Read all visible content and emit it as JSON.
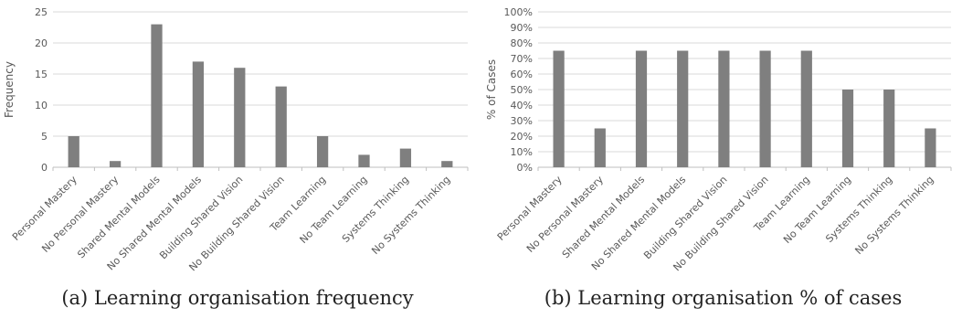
{
  "chart_data": [
    {
      "type": "bar",
      "title": "",
      "xlabel": "",
      "ylabel": "Frequency",
      "ylim": [
        0,
        25
      ],
      "yticks": [
        "0",
        "5",
        "10",
        "15",
        "20",
        "25"
      ],
      "grid": true,
      "categories": [
        "Personal Mastery",
        "No Personal Mastery",
        "Shared Mental Models",
        "No Shared Mental Models",
        "Building Shared Vision",
        "No Building Shared Vision",
        "Team Learning",
        "No Team Learning",
        "Systems Thinking",
        "No Systems Thinking"
      ],
      "values": [
        5,
        1,
        23,
        17,
        16,
        13,
        5,
        2,
        3,
        1
      ],
      "bar_color": "#7f7f7f"
    },
    {
      "type": "bar",
      "title": "",
      "xlabel": "",
      "ylabel": "% of Cases",
      "ylim": [
        0,
        100
      ],
      "yticks": [
        "0%",
        "10%",
        "20%",
        "30%",
        "40%",
        "50%",
        "60%",
        "70%",
        "80%",
        "90%",
        "100%"
      ],
      "grid": true,
      "categories": [
        "Personal Mastery",
        "No Personal Mastery",
        "Shared Mental Models",
        "No Shared Mental Models",
        "Building Shared Vision",
        "No Building Shared Vision",
        "Team Learning",
        "No Team Learning",
        "Systems Thinking",
        "No Systems Thinking"
      ],
      "values": [
        75,
        25,
        75,
        75,
        75,
        75,
        75,
        50,
        50,
        25
      ],
      "bar_color": "#7f7f7f"
    }
  ],
  "captions": {
    "a": "(a) Learning organisation frequency",
    "b": "(b) Learning organisation % of cases"
  }
}
